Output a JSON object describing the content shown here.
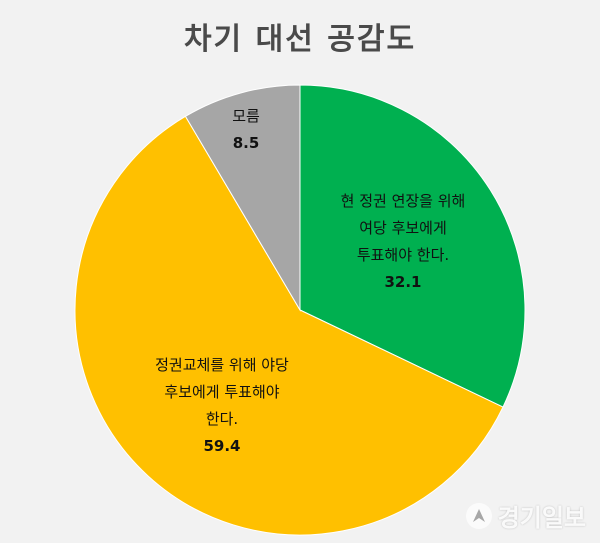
{
  "title": "차기 대선 공감도",
  "watermark": "경기일보",
  "chart_data": {
    "type": "pie",
    "title": "차기 대선 공감도",
    "start_angle_deg": 0,
    "direction": "clockwise",
    "slices": [
      {
        "label_lines": [
          "현 정권 연장을 위해",
          "여당 후보에게",
          "투표해야 한다."
        ],
        "value": 32.1,
        "value_text": "32.1",
        "color": "#00b050"
      },
      {
        "label_lines": [
          "정권교체를 위해 야당",
          "후보에게 투표해야",
          "한다."
        ],
        "value": 59.4,
        "value_text": "59.4",
        "color": "#ffc000"
      },
      {
        "label_lines": [
          "모름"
        ],
        "value": 8.5,
        "value_text": "8.5",
        "color": "#a6a6a6"
      }
    ]
  }
}
